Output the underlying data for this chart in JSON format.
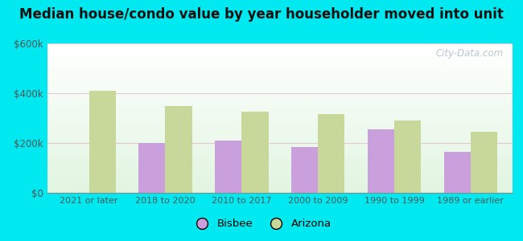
{
  "title": "Median house/condo value by year householder moved into unit",
  "categories": [
    "2021 or later",
    "2018 to 2020",
    "2010 to 2017",
    "2000 to 2009",
    "1990 to 1999",
    "1989 or earlier"
  ],
  "bisbee_values": [
    null,
    200000,
    210000,
    185000,
    255000,
    165000
  ],
  "arizona_values": [
    410000,
    350000,
    325000,
    315000,
    290000,
    245000
  ],
  "bisbee_color": "#c9a0dc",
  "arizona_color": "#c8d89a",
  "ylim": [
    0,
    600000
  ],
  "yticks": [
    0,
    200000,
    400000,
    600000
  ],
  "ytick_labels": [
    "$0",
    "$200k",
    "$400k",
    "$600k"
  ],
  "outer_bg": "#00e8f0",
  "watermark": "City-Data.com",
  "legend_labels": [
    "Bisbee",
    "Arizona"
  ],
  "bar_width": 0.35,
  "title_fontsize": 12
}
